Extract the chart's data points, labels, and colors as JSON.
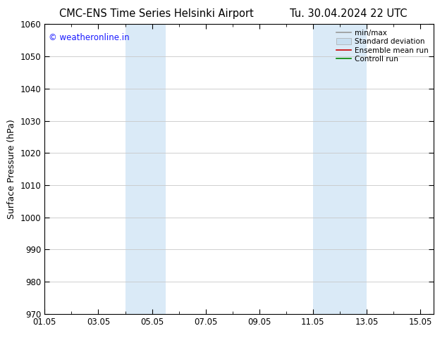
{
  "title_left": "CMC-ENS Time Series Helsinki Airport",
  "title_right": "Tu. 30.04.2024 22 UTC",
  "ylabel": "Surface Pressure (hPa)",
  "ylim": [
    970,
    1060
  ],
  "yticks": [
    970,
    980,
    990,
    1000,
    1010,
    1020,
    1030,
    1040,
    1050,
    1060
  ],
  "xtick_labels": [
    "01.05",
    "03.05",
    "05.05",
    "07.05",
    "09.05",
    "11.05",
    "13.05",
    "15.05"
  ],
  "xtick_values": [
    1,
    3,
    5,
    7,
    9,
    11,
    13,
    15
  ],
  "xminor_values": [
    2,
    4,
    6,
    8,
    10,
    12,
    14
  ],
  "xlim": [
    1,
    15.5
  ],
  "shaded_bands": [
    {
      "xmin": 4.0,
      "xmax": 5.5,
      "color": "#daeaf7"
    },
    {
      "xmin": 11.0,
      "xmax": 13.0,
      "color": "#daeaf7"
    }
  ],
  "watermark_text": "© weatheronline.in",
  "watermark_color": "#1a1aff",
  "legend_items": [
    {
      "label": "min/max",
      "color": "#999999",
      "lw": 1.2,
      "style": "line"
    },
    {
      "label": "Standard deviation",
      "color": "#c8dff0",
      "lw": 5,
      "style": "band"
    },
    {
      "label": "Ensemble mean run",
      "color": "#cc0000",
      "lw": 1.2,
      "style": "line"
    },
    {
      "label": "Controll run",
      "color": "#008800",
      "lw": 1.2,
      "style": "line"
    }
  ],
  "bg_color": "#ffffff",
  "grid_color": "#c8c8c8",
  "title_fontsize": 10.5,
  "ylabel_fontsize": 9,
  "tick_fontsize": 8.5,
  "watermark_fontsize": 8.5,
  "legend_fontsize": 7.5
}
